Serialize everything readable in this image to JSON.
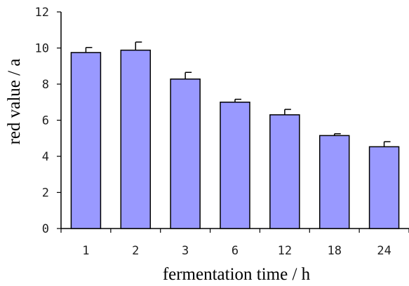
{
  "chart_data": {
    "type": "bar",
    "title": "",
    "xlabel": "fermentation time / h",
    "ylabel": "red value / a",
    "categories": [
      "1",
      "2",
      "3",
      "6",
      "12",
      "18",
      "24"
    ],
    "values": [
      9.75,
      9.88,
      8.28,
      7.0,
      6.3,
      5.15,
      4.53
    ],
    "error_plus": [
      0.28,
      0.45,
      0.37,
      0.16,
      0.3,
      0.1,
      0.28
    ],
    "ylim": [
      0,
      12
    ],
    "yticks": [
      "0",
      "2",
      "4",
      "6",
      "8",
      "10",
      "12"
    ],
    "grid": false,
    "legend": "none",
    "bar_color": "#9999ff",
    "bar_stroke": "#000000"
  }
}
